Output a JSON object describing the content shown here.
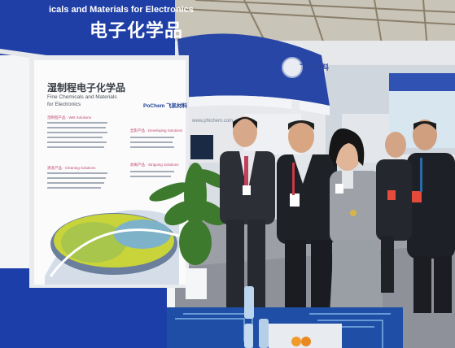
{
  "booth_banner": {
    "title_cn": "电子化学品",
    "title_en": "icals and Materials for Electronics"
  },
  "panel": {
    "title_cn": "湿制程电子化学品",
    "title_en_line1": "Fine Chemicals and Materials",
    "title_en_line2": "for Electronics",
    "brand": "PoChem 飞凯材料",
    "section_1": "湿制程产品 · Wet Solutions",
    "section_2": "清洗产品 · Cleaning Solutions",
    "section_3": "显影产品 · Developing Solutions",
    "section_4": "剥离产品 · Stripping Solutions"
  },
  "upper_booth": {
    "logo_text": "飞凯材料",
    "sub_text": "www.phichem.com"
  }
}
